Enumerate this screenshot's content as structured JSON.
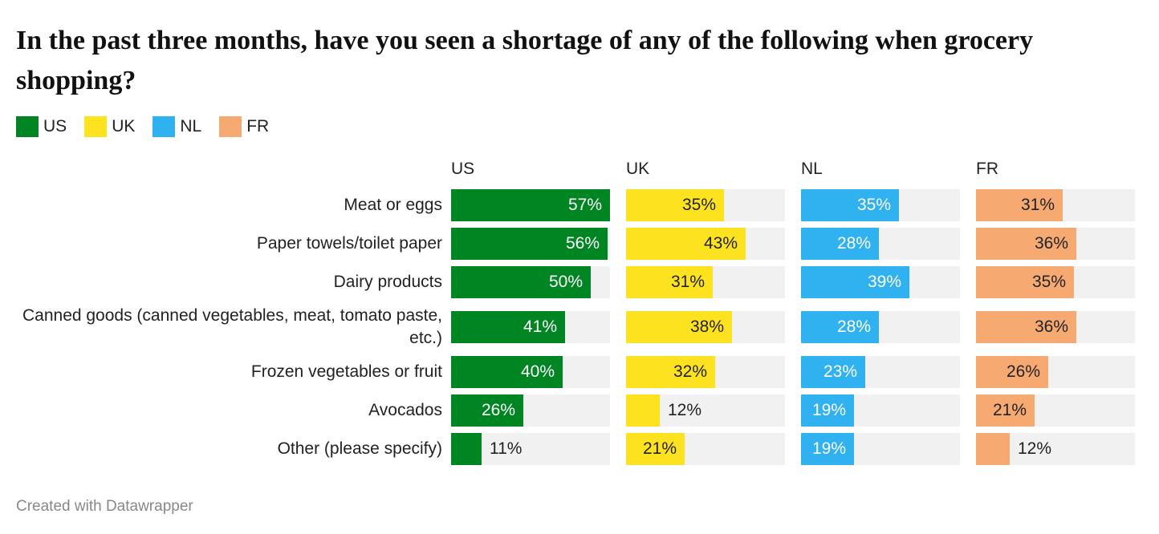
{
  "title": "In the past three months, have you seen a shortage of any of the following when grocery shopping?",
  "footer": "Created with Datawrapper",
  "chart_data": {
    "type": "bar",
    "orientation": "horizontal",
    "layout": "small-multiples",
    "title": "In the past three months, have you seen a shortage of any of the following when grocery shopping?",
    "categories": [
      "Meat or eggs",
      "Paper towels/toilet paper",
      "Dairy products",
      "Canned goods (canned vegetables, meat, tomato paste, etc.)",
      "Frozen vegetables or fruit",
      "Avocados",
      "Other (please specify)"
    ],
    "series": [
      {
        "name": "US",
        "color": "#008523",
        "label_color": "#ffffff",
        "values": [
          57,
          56,
          50,
          41,
          40,
          26,
          11
        ]
      },
      {
        "name": "UK",
        "color": "#fde220",
        "label_color": "#222222",
        "values": [
          35,
          43,
          31,
          38,
          32,
          12,
          21
        ]
      },
      {
        "name": "NL",
        "color": "#2fb2ef",
        "label_color": "#ffffff",
        "values": [
          35,
          28,
          39,
          28,
          23,
          19,
          19
        ]
      },
      {
        "name": "FR",
        "color": "#f6aa72",
        "label_color": "#222222",
        "values": [
          31,
          36,
          35,
          36,
          26,
          21,
          12
        ]
      }
    ],
    "value_suffix": "%",
    "xlim": [
      0,
      57
    ],
    "legend_position": "top-left",
    "grid": false
  }
}
